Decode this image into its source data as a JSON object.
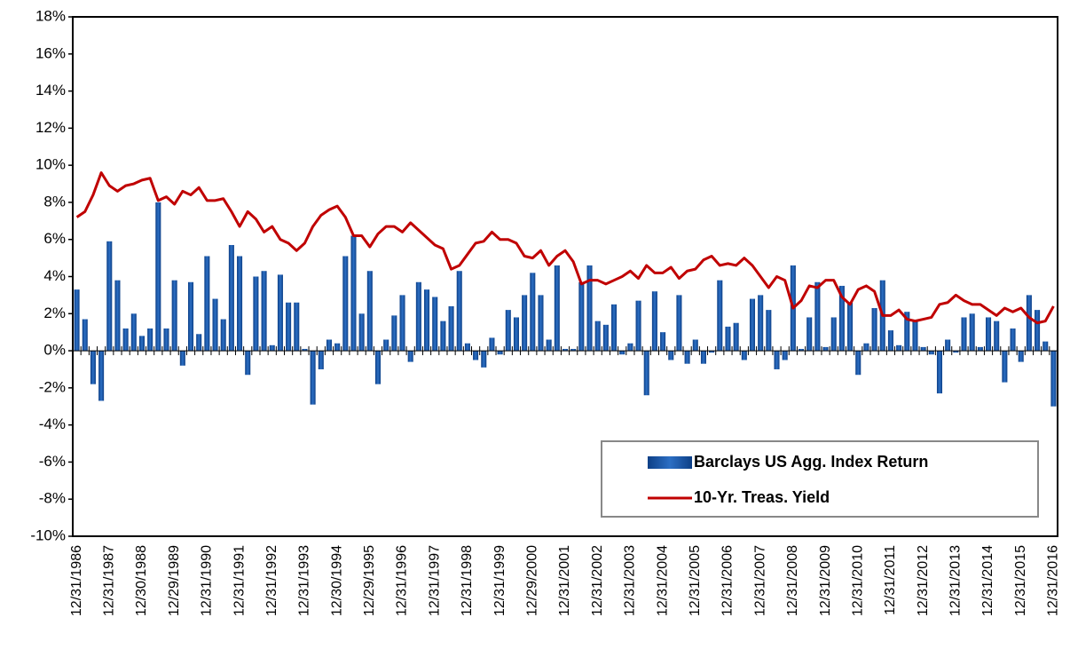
{
  "chart_data": {
    "type": "bar",
    "categories": [
      "12/31/1986",
      null,
      null,
      null,
      "12/31/1987",
      null,
      null,
      null,
      "12/30/1988",
      null,
      null,
      null,
      "12/29/1989",
      null,
      null,
      null,
      "12/31/1990",
      null,
      null,
      null,
      "12/31/1991",
      null,
      null,
      null,
      "12/31/1992",
      null,
      null,
      null,
      "12/31/1993",
      null,
      null,
      null,
      "12/30/1994",
      null,
      null,
      null,
      "12/29/1995",
      null,
      null,
      null,
      "12/31/1996",
      null,
      null,
      null,
      "12/31/1997",
      null,
      null,
      null,
      "12/31/1998",
      null,
      null,
      null,
      "12/31/1999",
      null,
      null,
      null,
      "12/29/2000",
      null,
      null,
      null,
      "12/31/2001",
      null,
      null,
      null,
      "12/31/2002",
      null,
      null,
      null,
      "12/31/2003",
      null,
      null,
      null,
      "12/31/2004",
      null,
      null,
      null,
      "12/31/2005",
      null,
      null,
      null,
      "12/31/2006",
      null,
      null,
      null,
      "12/31/2007",
      null,
      null,
      null,
      "12/31/2008",
      null,
      null,
      null,
      "12/31/2009",
      null,
      null,
      null,
      "12/31/2010",
      null,
      null,
      null,
      "12/31/2011",
      null,
      null,
      null,
      "12/31/2012",
      null,
      null,
      null,
      "12/31/2013",
      null,
      null,
      null,
      "12/31/2014",
      null,
      null,
      null,
      "12/31/2015",
      null,
      null,
      null,
      "12/31/2016"
    ],
    "series": [
      {
        "name": "Barclays US Agg. Index Return",
        "type": "bar",
        "color": "#1f5aa8",
        "values": [
          3.3,
          1.7,
          -1.8,
          -2.7,
          5.9,
          3.8,
          1.2,
          2.0,
          0.8,
          1.2,
          8.0,
          1.2,
          3.8,
          -0.8,
          3.7,
          0.9,
          5.1,
          2.8,
          1.7,
          5.7,
          5.1,
          -1.3,
          4.0,
          4.3,
          0.3,
          4.1,
          2.6,
          2.6,
          0.1,
          -2.9,
          -1.0,
          0.6,
          0.4,
          5.1,
          6.2,
          2.0,
          4.3,
          -1.8,
          0.6,
          1.9,
          3.0,
          -0.6,
          3.7,
          3.3,
          2.9,
          1.6,
          2.4,
          4.3,
          0.4,
          -0.5,
          -0.9,
          0.7,
          -0.2,
          2.2,
          1.8,
          3.0,
          4.2,
          3.0,
          0.6,
          4.6,
          0.1,
          0.1,
          3.7,
          4.6,
          1.6,
          1.4,
          2.5,
          -0.2,
          0.4,
          2.7,
          -2.4,
          3.2,
          1.0,
          -0.5,
          3.0,
          -0.7,
          0.6,
          -0.7,
          -0.1,
          3.8,
          1.3,
          1.5,
          -0.5,
          2.8,
          3.0,
          2.2,
          -1.0,
          -0.5,
          4.6,
          0.1,
          1.8,
          3.7,
          0.2,
          1.8,
          3.5,
          2.6,
          -1.3,
          0.4,
          2.3,
          3.8,
          1.1,
          0.3,
          2.1,
          1.6,
          0.2,
          -0.2,
          -2.3,
          0.6,
          -0.1,
          1.8,
          2.0,
          0.2,
          1.8,
          1.6,
          -1.7,
          1.2,
          -0.6,
          3.0,
          2.2,
          0.5,
          -3.0
        ]
      },
      {
        "name": "10-Yr. Treas. Yield",
        "type": "line",
        "color": "#c00000",
        "values": [
          7.2,
          7.5,
          8.4,
          9.6,
          8.9,
          8.6,
          8.9,
          9.0,
          9.2,
          9.3,
          8.1,
          8.3,
          7.9,
          8.6,
          8.4,
          8.8,
          8.1,
          8.1,
          8.2,
          7.5,
          6.7,
          7.5,
          7.1,
          6.4,
          6.7,
          6.0,
          5.8,
          5.4,
          5.8,
          6.7,
          7.3,
          7.6,
          7.8,
          7.2,
          6.2,
          6.2,
          5.6,
          6.3,
          6.7,
          6.7,
          6.4,
          6.9,
          6.5,
          6.1,
          5.7,
          5.5,
          4.4,
          4.6,
          5.2,
          5.8,
          5.9,
          6.4,
          6.0,
          6.0,
          5.8,
          5.1,
          5.0,
          5.4,
          4.6,
          5.1,
          5.4,
          4.8,
          3.6,
          3.8,
          3.8,
          3.6,
          3.8,
          4.0,
          4.3,
          3.9,
          4.6,
          4.2,
          4.2,
          4.5,
          3.9,
          4.3,
          4.4,
          4.9,
          5.1,
          4.6,
          4.7,
          4.6,
          5.0,
          4.6,
          4.0,
          3.4,
          4.0,
          3.8,
          2.3,
          2.7,
          3.5,
          3.4,
          3.8,
          3.8,
          2.9,
          2.5,
          3.3,
          3.5,
          3.2,
          1.9,
          1.9,
          2.2,
          1.7,
          1.6,
          1.7,
          1.8,
          2.5,
          2.6,
          3.0,
          2.7,
          2.5,
          2.5,
          2.2,
          1.9,
          2.3,
          2.1,
          2.3,
          1.8,
          1.5,
          1.6,
          2.4
        ]
      }
    ],
    "ylim": [
      -10,
      18
    ],
    "yticks": [
      {
        "value": -10,
        "label": "-10%"
      },
      {
        "value": -8,
        "label": "-8%"
      },
      {
        "value": -6,
        "label": "-6%"
      },
      {
        "value": -4,
        "label": "-4%"
      },
      {
        "value": -2,
        "label": "-2%"
      },
      {
        "value": 0,
        "label": "0%"
      },
      {
        "value": 2,
        "label": "2%"
      },
      {
        "value": 4,
        "label": "4%"
      },
      {
        "value": 6,
        "label": "6%"
      },
      {
        "value": 8,
        "label": "8%"
      },
      {
        "value": 10,
        "label": "10%"
      },
      {
        "value": 12,
        "label": "12%"
      },
      {
        "value": 14,
        "label": "14%"
      },
      {
        "value": 16,
        "label": "16%"
      },
      {
        "value": 18,
        "label": "18%"
      }
    ],
    "legend": "bottom-right"
  }
}
